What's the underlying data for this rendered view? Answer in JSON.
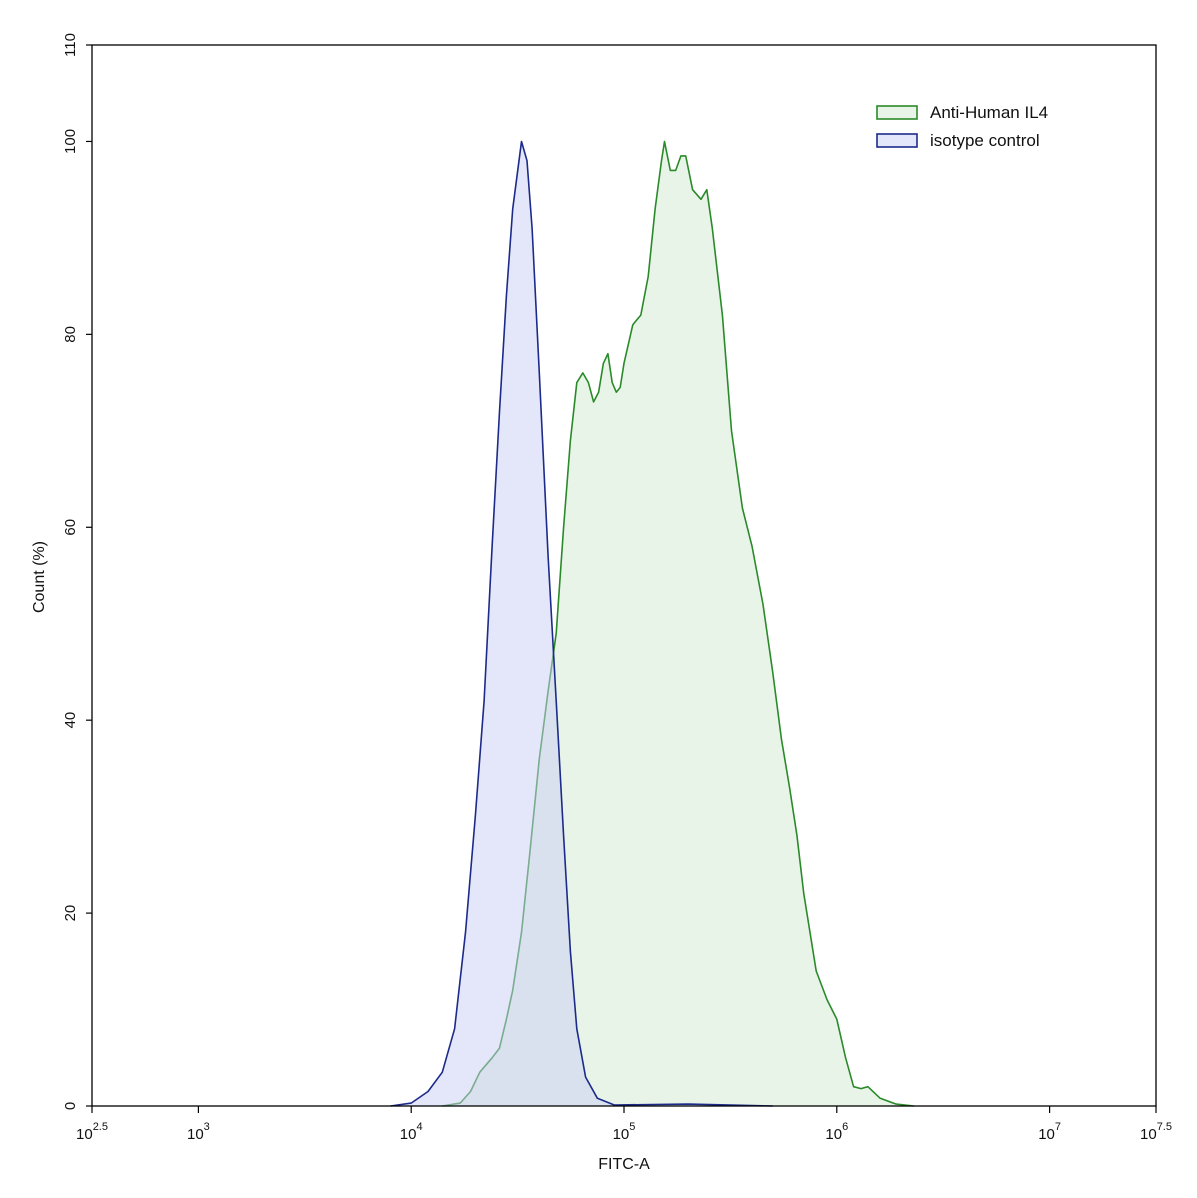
{
  "chart_data": {
    "type": "area",
    "x_label": "FITC-A",
    "y_label": "Count  (%)",
    "xscale": "log",
    "xlim": [
      316.227766,
      31622776.6
    ],
    "xticks": [
      {
        "value": 316.227766,
        "label": "10",
        "exponent": "2.5"
      },
      {
        "value": 1000,
        "label": "10",
        "exponent": "3"
      },
      {
        "value": 10000,
        "label": "10",
        "exponent": "4"
      },
      {
        "value": 100000,
        "label": "10",
        "exponent": "5"
      },
      {
        "value": 1000000,
        "label": "10",
        "exponent": "6"
      },
      {
        "value": 10000000,
        "label": "10",
        "exponent": "7"
      },
      {
        "value": 31622776.6,
        "label": "10",
        "exponent": "7.5"
      }
    ],
    "ylim": [
      0,
      110
    ],
    "yticks": [
      0,
      20,
      40,
      60,
      80,
      100,
      110
    ],
    "legend": "upper right",
    "series": [
      {
        "name": "Anti-Human IL4",
        "color": "#2a8a2a",
        "fill": "#cfeacf",
        "x": [
          14000,
          17000,
          19000,
          21000,
          24000,
          26000,
          28000,
          30000,
          33000,
          36000,
          40000,
          44000,
          48000,
          52000,
          56000,
          60000,
          64000,
          68000,
          72000,
          76000,
          80000,
          84000,
          88000,
          92000,
          96000,
          100000,
          110000,
          120000,
          130000,
          140000,
          150000,
          155000,
          165000,
          175000,
          185000,
          195000,
          210000,
          230000,
          245000,
          260000,
          290000,
          320000,
          360000,
          400000,
          450000,
          500000,
          550000,
          600000,
          650000,
          700000,
          800000,
          900000,
          1000000,
          1100000,
          1200000,
          1300000,
          1400000,
          1600000,
          1900000,
          2300000
        ],
        "values": [
          0,
          0.3,
          1.5,
          3.5,
          5,
          6,
          9,
          12,
          18,
          26,
          36,
          43,
          49,
          60,
          69,
          75,
          76,
          75,
          73,
          74,
          77,
          78,
          75,
          74,
          74.5,
          77,
          81,
          82,
          86,
          93,
          98,
          100,
          97,
          97,
          98.5,
          98.5,
          95,
          94,
          95,
          91,
          82,
          70,
          62,
          58,
          52,
          45,
          38,
          33,
          28,
          22,
          14,
          11,
          9,
          5,
          2,
          1.8,
          2,
          0.8,
          0.2,
          0
        ]
      },
      {
        "name": "isotype control",
        "color": "#1c2a8a",
        "fill": "#c9cef3",
        "x": [
          8000,
          10000,
          12000,
          14000,
          16000,
          18000,
          20000,
          22000,
          24000,
          26000,
          28000,
          30000,
          33000,
          35000,
          37000,
          40000,
          44000,
          48000,
          52000,
          56000,
          60000,
          66000,
          75000,
          90000,
          200000,
          500000
        ],
        "values": [
          0,
          0.3,
          1.5,
          3.5,
          8,
          18,
          30,
          42,
          58,
          72,
          84,
          93,
          100,
          98,
          91,
          76,
          57,
          42,
          28,
          16,
          8,
          3,
          0.8,
          0.1,
          0.2,
          0
        ]
      }
    ]
  }
}
